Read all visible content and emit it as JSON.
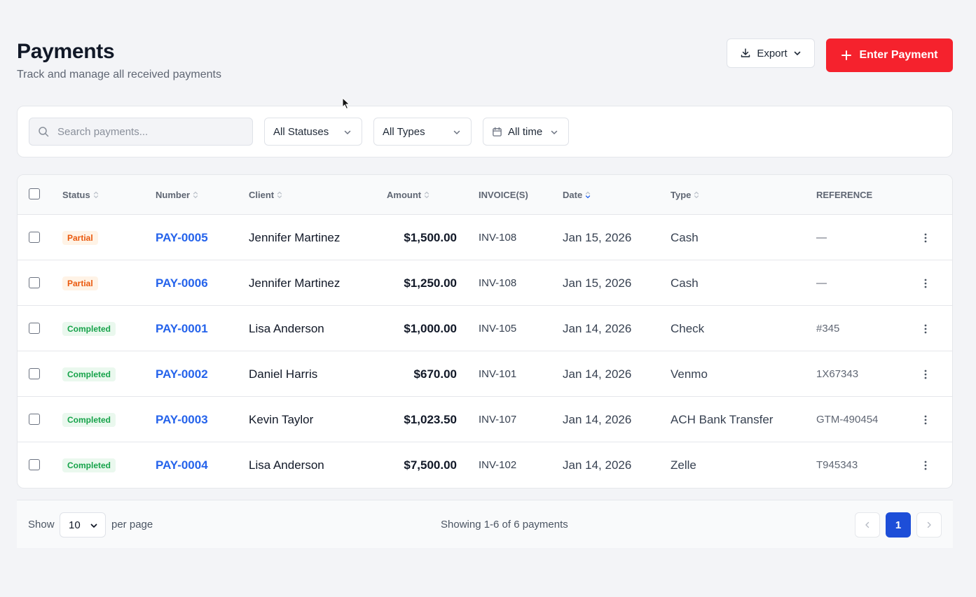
{
  "header": {
    "title": "Payments",
    "subtitle": "Track and manage all received payments"
  },
  "actions": {
    "export_label": "Export",
    "enter_payment_label": "Enter Payment",
    "accent_color": "#f5222d"
  },
  "filters": {
    "search_placeholder": "Search payments...",
    "status": "All Statuses",
    "type": "All Types",
    "date": "All time"
  },
  "table": {
    "columns": {
      "status": "Status",
      "number": "Number",
      "client": "Client",
      "amount": "Amount",
      "invoices": "INVOICE(S)",
      "date": "Date",
      "type": "Type",
      "reference": "REFERENCE"
    },
    "rows": [
      {
        "status": "Partial",
        "status_kind": "partial",
        "number": "PAY-0005",
        "client": "Jennifer Martinez",
        "amount": "$1,500.00",
        "invoice": "INV-108",
        "date": "Jan 15, 2026",
        "type": "Cash",
        "reference": "—"
      },
      {
        "status": "Partial",
        "status_kind": "partial",
        "number": "PAY-0006",
        "client": "Jennifer Martinez",
        "amount": "$1,250.00",
        "invoice": "INV-108",
        "date": "Jan 15, 2026",
        "type": "Cash",
        "reference": "—"
      },
      {
        "status": "Completed",
        "status_kind": "completed",
        "number": "PAY-0001",
        "client": "Lisa Anderson",
        "amount": "$1,000.00",
        "invoice": "INV-105",
        "date": "Jan 14, 2026",
        "type": "Check",
        "reference": "#345"
      },
      {
        "status": "Completed",
        "status_kind": "completed",
        "number": "PAY-0002",
        "client": "Daniel Harris",
        "amount": "$670.00",
        "invoice": "INV-101",
        "date": "Jan 14, 2026",
        "type": "Venmo",
        "reference": "1X67343"
      },
      {
        "status": "Completed",
        "status_kind": "completed",
        "number": "PAY-0003",
        "client": "Kevin Taylor",
        "amount": "$1,023.50",
        "invoice": "INV-107",
        "date": "Jan 14, 2026",
        "type": "ACH Bank Transfer",
        "reference": "GTM-490454"
      },
      {
        "status": "Completed",
        "status_kind": "completed",
        "number": "PAY-0004",
        "client": "Lisa Anderson",
        "amount": "$7,500.00",
        "invoice": "INV-102",
        "date": "Jan 14, 2026",
        "type": "Zelle",
        "reference": "T945343"
      }
    ]
  },
  "pagination": {
    "show_label": "Show",
    "per_page_value": "10",
    "per_page_label": "per page",
    "summary": "Showing 1-6 of 6 payments",
    "current_page": "1"
  }
}
